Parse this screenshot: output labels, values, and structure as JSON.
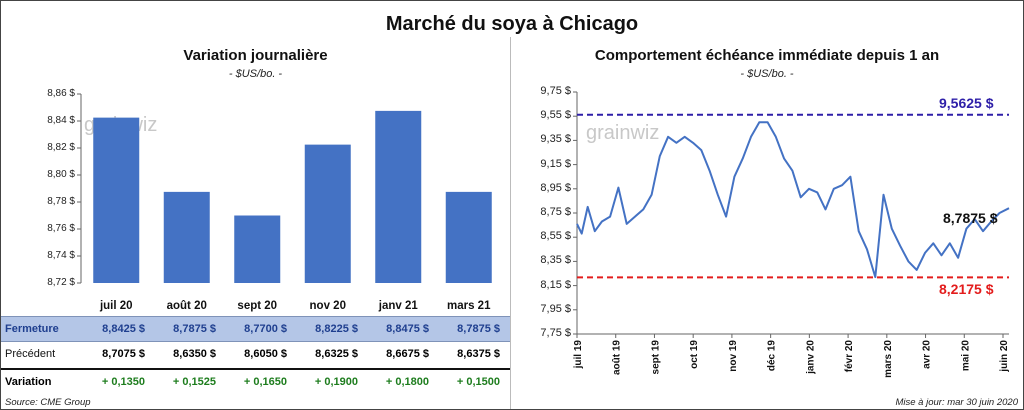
{
  "title": "Marché du soya à Chicago",
  "left_panel": {
    "title": "Variation  journalière",
    "unit": "- $US/bo. -"
  },
  "right_panel": {
    "title": "Comportement  échéance immédiate depuis 1 an",
    "unit": "- $US/bo. -"
  },
  "watermark": "grainwiz",
  "colors": {
    "bar": "#4472c4",
    "line": "#4472c4",
    "high": "#2e1fa8",
    "low": "#e31c1c",
    "accent_row": "#b4c6e7",
    "variation": "#1e7d1e"
  },
  "table": {
    "rows": [
      {
        "label": "Fermeture",
        "cells": [
          "8,8425  $",
          "8,7875  $",
          "8,7700  $",
          "8,8225  $",
          "8,8475  $",
          "8,7875  $"
        ]
      },
      {
        "label": "Précédent",
        "cells": [
          "8,7075  $",
          "8,6350  $",
          "8,6050  $",
          "8,6325  $",
          "8,6675  $",
          "8,6375  $"
        ]
      },
      {
        "label": "Variation",
        "cells": [
          "+ 0,1350",
          "+ 0,1525",
          "+ 0,1650",
          "+ 0,1900",
          "+ 0,1800",
          "+ 0,1500"
        ]
      }
    ]
  },
  "source": "Source: CME Group",
  "updated": "Mise à jour: mar 30 juin 2020",
  "chart_data": [
    {
      "type": "bar",
      "title": "Variation  journalière",
      "subtitle": "- $US/bo. -",
      "categories": [
        "juil 20",
        "août 20",
        "sept 20",
        "nov 20",
        "janv 21",
        "mars 21"
      ],
      "values": [
        8.8425,
        8.7875,
        8.77,
        8.8225,
        8.8475,
        8.7875
      ],
      "ylim": [
        8.72,
        8.86
      ],
      "yticks": [
        "8,72 $",
        "8,74 $",
        "8,76 $",
        "8,78 $",
        "8,80 $",
        "8,82 $",
        "8,84 $",
        "8,86 $"
      ],
      "grid": false
    },
    {
      "type": "line",
      "title": "Comportement  échéance immédiate depuis 1 an",
      "subtitle": "- $US/bo. -",
      "xlim": [
        "2019-07-01",
        "2020-06-30"
      ],
      "xticks": [
        "juil 19",
        "août 19",
        "sept 19",
        "oct 19",
        "nov 19",
        "déc 19",
        "janv 20",
        "févr 20",
        "mars 20",
        "avr 20",
        "mai 20",
        "juin 20"
      ],
      "ylim": [
        7.75,
        9.75
      ],
      "yticks": [
        "7,75 $",
        "7,95 $",
        "8,15 $",
        "8,35 $",
        "8,55 $",
        "8,75 $",
        "8,95 $",
        "9,15 $",
        "9,35 $",
        "9,55 $",
        "9,75 $"
      ],
      "x": [
        "2019-07-01",
        "2019-07-05",
        "2019-07-10",
        "2019-07-16",
        "2019-07-22",
        "2019-07-29",
        "2019-08-05",
        "2019-08-12",
        "2019-08-19",
        "2019-08-26",
        "2019-09-02",
        "2019-09-09",
        "2019-09-16",
        "2019-09-23",
        "2019-09-30",
        "2019-10-07",
        "2019-10-14",
        "2019-10-21",
        "2019-10-28",
        "2019-11-04",
        "2019-11-11",
        "2019-11-18",
        "2019-11-25",
        "2019-12-02",
        "2019-12-09",
        "2019-12-16",
        "2019-12-23",
        "2019-12-30",
        "2020-01-06",
        "2020-01-13",
        "2020-01-20",
        "2020-01-27",
        "2020-02-03",
        "2020-02-10",
        "2020-02-17",
        "2020-02-24",
        "2020-03-02",
        "2020-03-09",
        "2020-03-16",
        "2020-03-23",
        "2020-03-30",
        "2020-04-06",
        "2020-04-13",
        "2020-04-20",
        "2020-04-27",
        "2020-05-04",
        "2020-05-11",
        "2020-05-18",
        "2020-05-25",
        "2020-06-01",
        "2020-06-08",
        "2020-06-15",
        "2020-06-22",
        "2020-06-30"
      ],
      "series": [
        {
          "values": [
            8.66,
            8.58,
            8.8,
            8.6,
            8.68,
            8.72,
            8.96,
            8.66,
            8.72,
            8.78,
            8.9,
            9.22,
            9.38,
            9.33,
            9.38,
            9.33,
            9.27,
            9.1,
            8.9,
            8.72,
            9.05,
            9.2,
            9.38,
            9.5,
            9.5,
            9.38,
            9.2,
            9.1,
            8.88,
            8.95,
            8.92,
            8.78,
            8.95,
            8.98,
            9.05,
            8.6,
            8.45,
            8.22,
            8.9,
            8.62,
            8.48,
            8.35,
            8.28,
            8.42,
            8.5,
            8.4,
            8.5,
            8.38,
            8.62,
            8.7,
            8.6,
            8.68,
            8.75,
            8.79
          ],
          "color": "#4472c4"
        }
      ],
      "reference_lines": [
        {
          "value": 9.5625,
          "label": "9,5625  $",
          "color": "#2e1fa8",
          "style": "dashed"
        },
        {
          "value": 8.2175,
          "label": "8,2175  $",
          "color": "#e31c1c",
          "style": "dashed"
        }
      ],
      "last_value_label": "8,7875 $",
      "grid": false
    }
  ]
}
